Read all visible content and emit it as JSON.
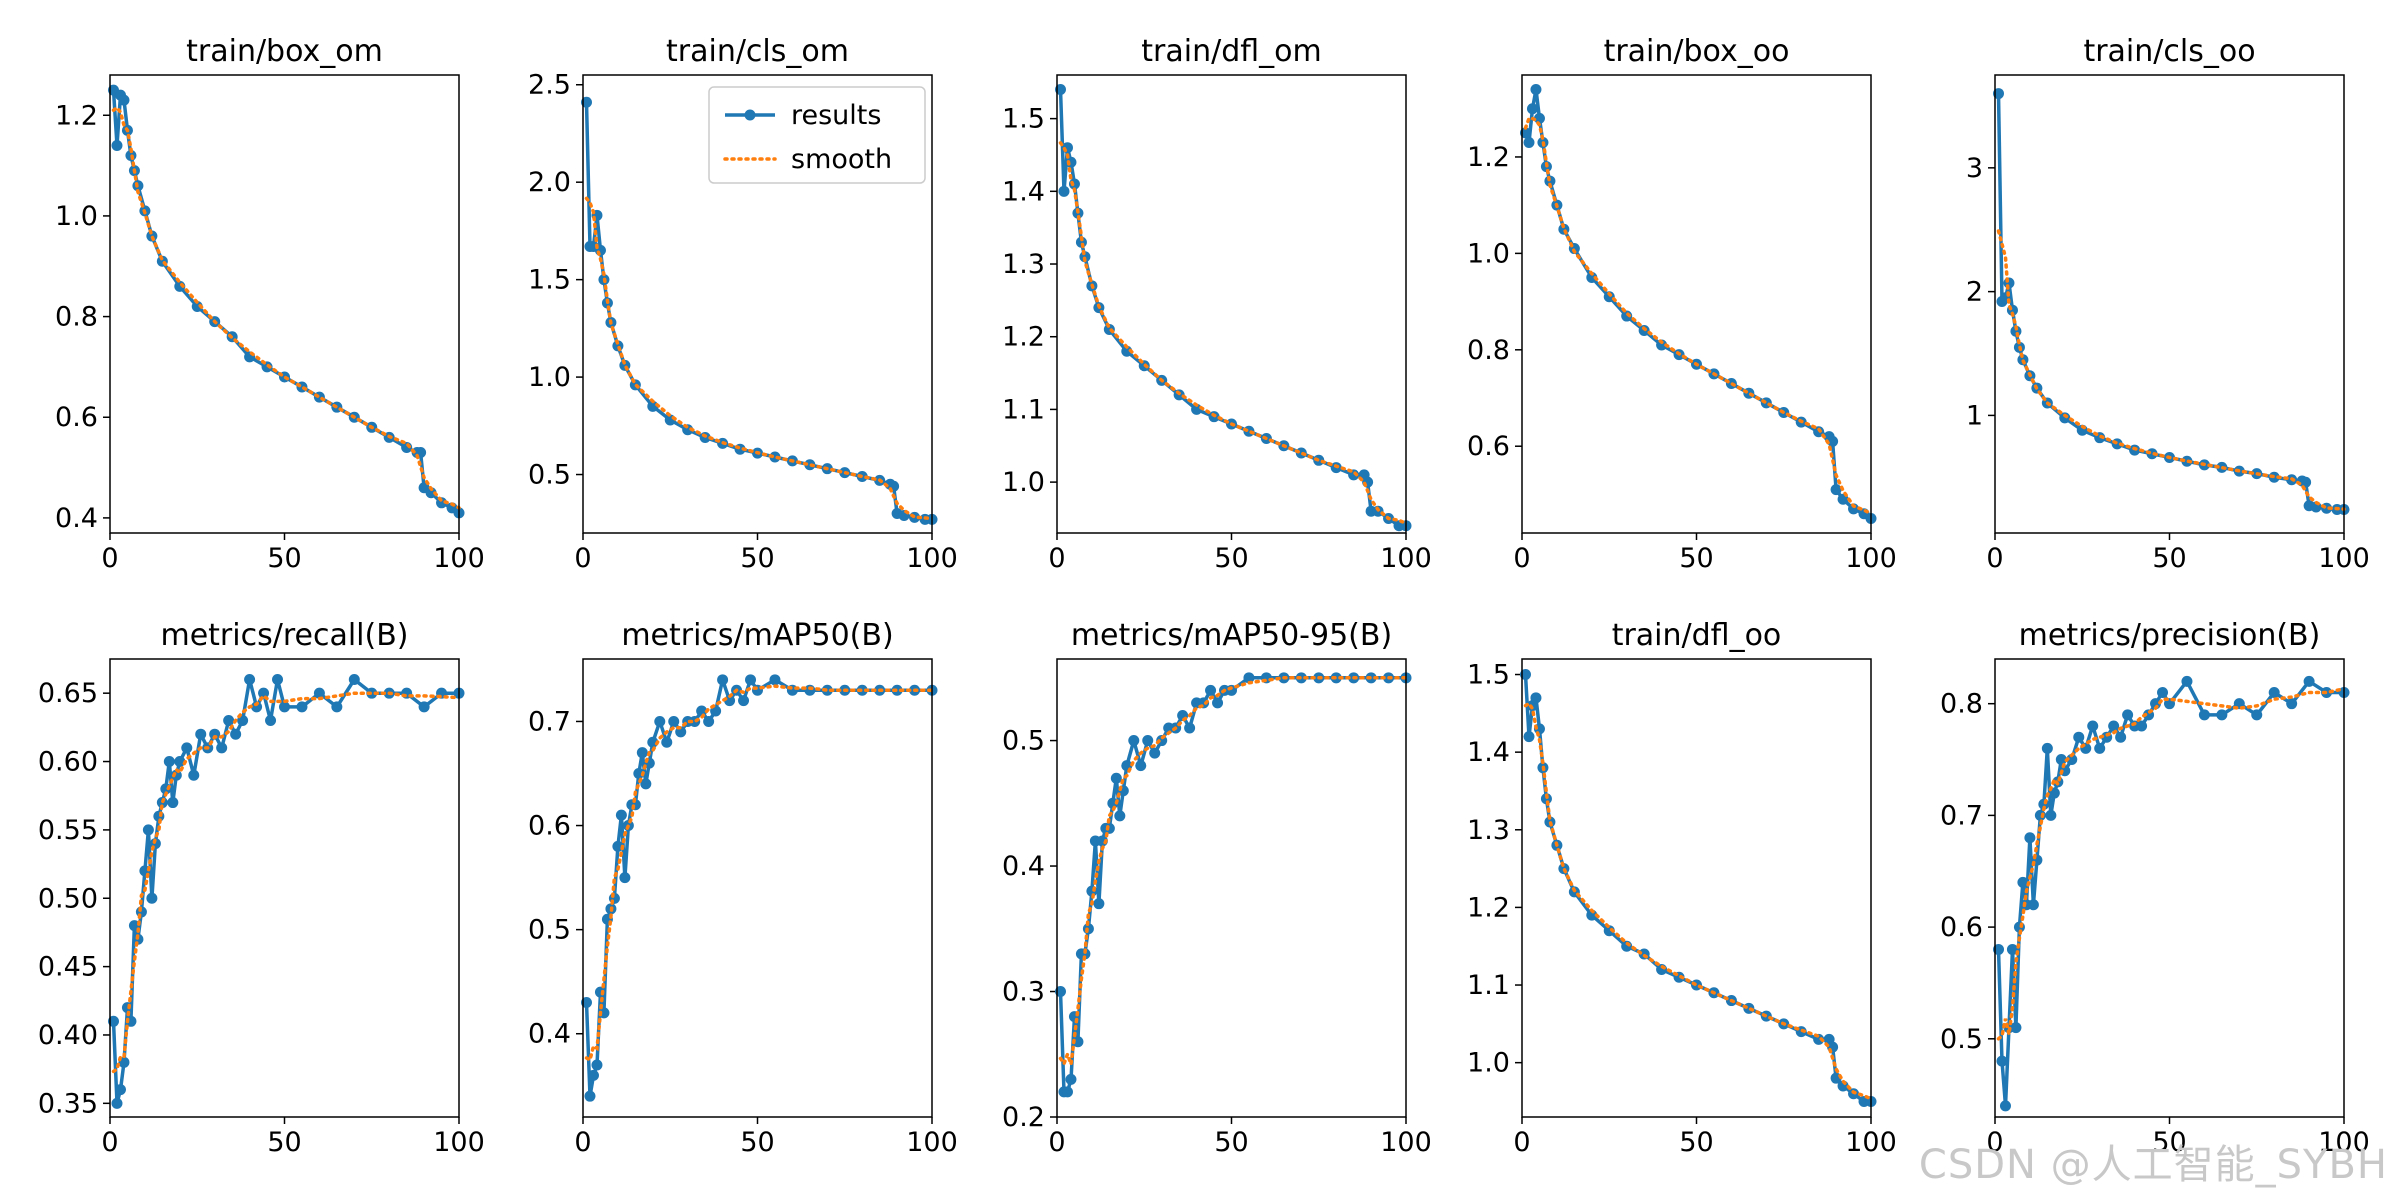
{
  "figure": {
    "watermark": "CSDN @人工智能_SYBH",
    "legend": {
      "results_label": "results",
      "smooth_label": "smooth",
      "placement": "upper-right of train/cls_om panel"
    },
    "colors": {
      "results": "#1f77b4",
      "smooth": "#ff7f0e"
    }
  },
  "chart_data": [
    {
      "type": "line",
      "title": "train/box_om",
      "xlim": [
        0,
        100
      ],
      "ylim": [
        0.37,
        1.28
      ],
      "xticks": [
        0,
        50,
        100
      ],
      "yticks": [
        0.4,
        0.6,
        0.8,
        1.0,
        1.2
      ],
      "ytick_labels": [
        "0.4",
        "0.6",
        "0.8",
        "1.0",
        "1.2"
      ],
      "series": [
        {
          "name": "results",
          "x": [
            1,
            2,
            3,
            4,
            5,
            6,
            7,
            8,
            10,
            12,
            15,
            20,
            25,
            30,
            35,
            40,
            45,
            50,
            55,
            60,
            65,
            70,
            75,
            80,
            85,
            88,
            89,
            90,
            92,
            95,
            98,
            100
          ],
          "y": [
            1.25,
            1.14,
            1.24,
            1.23,
            1.17,
            1.12,
            1.09,
            1.06,
            1.01,
            0.96,
            0.91,
            0.86,
            0.82,
            0.79,
            0.76,
            0.72,
            0.7,
            0.68,
            0.66,
            0.64,
            0.62,
            0.6,
            0.58,
            0.56,
            0.54,
            0.53,
            0.53,
            0.46,
            0.45,
            0.43,
            0.42,
            0.41
          ]
        }
      ]
    },
    {
      "type": "line",
      "title": "train/cls_om",
      "xlim": [
        0,
        100
      ],
      "ylim": [
        0.2,
        2.55
      ],
      "xticks": [
        0,
        50,
        100
      ],
      "yticks": [
        0.5,
        1.0,
        1.5,
        2.0,
        2.5
      ],
      "ytick_labels": [
        "0.5",
        "1.0",
        "1.5",
        "2.0",
        "2.5"
      ],
      "series": [
        {
          "name": "results",
          "x": [
            1,
            2,
            3,
            4,
            5,
            6,
            7,
            8,
            10,
            12,
            15,
            20,
            25,
            30,
            35,
            40,
            45,
            50,
            55,
            60,
            65,
            70,
            75,
            80,
            85,
            88,
            89,
            90,
            92,
            95,
            98,
            100
          ],
          "y": [
            2.41,
            1.67,
            1.67,
            1.83,
            1.65,
            1.5,
            1.38,
            1.28,
            1.16,
            1.06,
            0.96,
            0.85,
            0.78,
            0.73,
            0.69,
            0.66,
            0.63,
            0.61,
            0.59,
            0.57,
            0.55,
            0.53,
            0.51,
            0.49,
            0.47,
            0.45,
            0.44,
            0.3,
            0.29,
            0.28,
            0.27,
            0.27
          ]
        }
      ]
    },
    {
      "type": "line",
      "title": "train/dfl_om",
      "xlim": [
        0,
        100
      ],
      "ylim": [
        0.93,
        1.56
      ],
      "xticks": [
        0,
        50,
        100
      ],
      "yticks": [
        1.0,
        1.1,
        1.2,
        1.3,
        1.4,
        1.5
      ],
      "ytick_labels": [
        "1.0",
        "1.1",
        "1.2",
        "1.3",
        "1.4",
        "1.5"
      ],
      "series": [
        {
          "name": "results",
          "x": [
            1,
            2,
            3,
            4,
            5,
            6,
            7,
            8,
            10,
            12,
            15,
            20,
            25,
            30,
            35,
            40,
            45,
            50,
            55,
            60,
            65,
            70,
            75,
            80,
            85,
            88,
            89,
            90,
            92,
            95,
            98,
            100
          ],
          "y": [
            1.54,
            1.4,
            1.46,
            1.44,
            1.41,
            1.37,
            1.33,
            1.31,
            1.27,
            1.24,
            1.21,
            1.18,
            1.16,
            1.14,
            1.12,
            1.1,
            1.09,
            1.08,
            1.07,
            1.06,
            1.05,
            1.04,
            1.03,
            1.02,
            1.01,
            1.01,
            1.0,
            0.96,
            0.96,
            0.95,
            0.94,
            0.94
          ]
        }
      ]
    },
    {
      "type": "line",
      "title": "train/box_oo",
      "xlim": [
        0,
        100
      ],
      "ylim": [
        0.42,
        1.37
      ],
      "xticks": [
        0,
        50,
        100
      ],
      "yticks": [
        0.6,
        0.8,
        1.0,
        1.2
      ],
      "ytick_labels": [
        "0.6",
        "0.8",
        "1.0",
        "1.2"
      ],
      "series": [
        {
          "name": "results",
          "x": [
            1,
            2,
            3,
            4,
            5,
            6,
            7,
            8,
            10,
            12,
            15,
            20,
            25,
            30,
            35,
            40,
            45,
            50,
            55,
            60,
            65,
            70,
            75,
            80,
            85,
            88,
            89,
            90,
            92,
            95,
            98,
            100
          ],
          "y": [
            1.25,
            1.23,
            1.3,
            1.34,
            1.28,
            1.23,
            1.18,
            1.15,
            1.1,
            1.05,
            1.01,
            0.95,
            0.91,
            0.87,
            0.84,
            0.81,
            0.79,
            0.77,
            0.75,
            0.73,
            0.71,
            0.69,
            0.67,
            0.65,
            0.63,
            0.62,
            0.61,
            0.51,
            0.49,
            0.47,
            0.46,
            0.45
          ]
        }
      ]
    },
    {
      "type": "line",
      "title": "train/cls_oo",
      "xlim": [
        0,
        100
      ],
      "ylim": [
        0.05,
        3.75
      ],
      "xticks": [
        0,
        50,
        100
      ],
      "yticks": [
        1,
        2,
        3
      ],
      "ytick_labels": [
        "1",
        "2",
        "3"
      ],
      "series": [
        {
          "name": "results",
          "x": [
            1,
            2,
            3,
            4,
            5,
            6,
            7,
            8,
            10,
            12,
            15,
            20,
            25,
            30,
            35,
            40,
            45,
            50,
            55,
            60,
            65,
            70,
            75,
            80,
            85,
            88,
            89,
            90,
            92,
            95,
            98,
            100
          ],
          "y": [
            3.6,
            1.92,
            1.95,
            2.07,
            1.85,
            1.68,
            1.55,
            1.45,
            1.32,
            1.22,
            1.1,
            0.98,
            0.88,
            0.82,
            0.77,
            0.72,
            0.69,
            0.66,
            0.63,
            0.6,
            0.58,
            0.55,
            0.53,
            0.5,
            0.48,
            0.47,
            0.46,
            0.27,
            0.26,
            0.25,
            0.24,
            0.24
          ]
        }
      ]
    },
    {
      "type": "line",
      "title": "metrics/recall(B)",
      "xlim": [
        0,
        100
      ],
      "ylim": [
        0.34,
        0.675
      ],
      "xticks": [
        0,
        50,
        100
      ],
      "yticks": [
        0.35,
        0.4,
        0.45,
        0.5,
        0.55,
        0.6,
        0.65
      ],
      "ytick_labels": [
        "0.35",
        "0.40",
        "0.45",
        "0.50",
        "0.55",
        "0.60",
        "0.65"
      ],
      "series": [
        {
          "name": "results",
          "x": [
            1,
            2,
            3,
            4,
            5,
            6,
            7,
            8,
            9,
            10,
            11,
            12,
            13,
            14,
            15,
            16,
            17,
            18,
            19,
            20,
            22,
            24,
            26,
            28,
            30,
            32,
            34,
            36,
            38,
            40,
            42,
            44,
            46,
            48,
            50,
            55,
            60,
            65,
            70,
            75,
            80,
            85,
            90,
            95,
            100
          ],
          "y": [
            0.41,
            0.35,
            0.36,
            0.38,
            0.42,
            0.41,
            0.48,
            0.47,
            0.49,
            0.52,
            0.55,
            0.5,
            0.54,
            0.56,
            0.57,
            0.58,
            0.6,
            0.57,
            0.59,
            0.6,
            0.61,
            0.59,
            0.62,
            0.61,
            0.62,
            0.61,
            0.63,
            0.62,
            0.63,
            0.66,
            0.64,
            0.65,
            0.63,
            0.66,
            0.64,
            0.64,
            0.65,
            0.64,
            0.66,
            0.65,
            0.65,
            0.65,
            0.64,
            0.65,
            0.65
          ]
        }
      ]
    },
    {
      "type": "line",
      "title": "metrics/mAP50(B)",
      "xlim": [
        0,
        100
      ],
      "ylim": [
        0.32,
        0.76
      ],
      "xticks": [
        0,
        50,
        100
      ],
      "yticks": [
        0.4,
        0.5,
        0.6,
        0.7
      ],
      "ytick_labels": [
        "0.4",
        "0.5",
        "0.6",
        "0.7"
      ],
      "series": [
        {
          "name": "results",
          "x": [
            1,
            2,
            3,
            4,
            5,
            6,
            7,
            8,
            9,
            10,
            11,
            12,
            13,
            14,
            15,
            16,
            17,
            18,
            19,
            20,
            22,
            24,
            26,
            28,
            30,
            32,
            34,
            36,
            38,
            40,
            42,
            44,
            46,
            48,
            50,
            55,
            60,
            65,
            70,
            75,
            80,
            85,
            90,
            95,
            100
          ],
          "y": [
            0.43,
            0.34,
            0.36,
            0.37,
            0.44,
            0.42,
            0.51,
            0.52,
            0.53,
            0.58,
            0.61,
            0.55,
            0.6,
            0.62,
            0.62,
            0.65,
            0.67,
            0.64,
            0.66,
            0.68,
            0.7,
            0.68,
            0.7,
            0.69,
            0.7,
            0.7,
            0.71,
            0.7,
            0.71,
            0.74,
            0.72,
            0.73,
            0.72,
            0.74,
            0.73,
            0.74,
            0.73,
            0.73,
            0.73,
            0.73,
            0.73,
            0.73,
            0.73,
            0.73,
            0.73
          ]
        }
      ]
    },
    {
      "type": "line",
      "title": "metrics/mAP50-95(B)",
      "xlim": [
        0,
        100
      ],
      "ylim": [
        0.2,
        0.565
      ],
      "xticks": [
        0,
        50,
        100
      ],
      "yticks": [
        0.2,
        0.3,
        0.4,
        0.5
      ],
      "ytick_labels": [
        "0.2",
        "0.3",
        "0.4",
        "0.5"
      ],
      "series": [
        {
          "name": "results",
          "x": [
            1,
            2,
            3,
            4,
            5,
            6,
            7,
            8,
            9,
            10,
            11,
            12,
            13,
            14,
            15,
            16,
            17,
            18,
            19,
            20,
            22,
            24,
            26,
            28,
            30,
            32,
            34,
            36,
            38,
            40,
            42,
            44,
            46,
            48,
            50,
            55,
            60,
            65,
            70,
            75,
            80,
            85,
            90,
            95,
            100
          ],
          "y": [
            0.3,
            0.22,
            0.22,
            0.23,
            0.28,
            0.26,
            0.33,
            0.33,
            0.35,
            0.38,
            0.42,
            0.37,
            0.42,
            0.43,
            0.43,
            0.45,
            0.47,
            0.44,
            0.46,
            0.48,
            0.5,
            0.48,
            0.5,
            0.49,
            0.5,
            0.51,
            0.51,
            0.52,
            0.51,
            0.53,
            0.53,
            0.54,
            0.53,
            0.54,
            0.54,
            0.55,
            0.55,
            0.55,
            0.55,
            0.55,
            0.55,
            0.55,
            0.55,
            0.55,
            0.55
          ]
        }
      ]
    },
    {
      "type": "line",
      "title": "train/dfl_oo",
      "xlim": [
        0,
        100
      ],
      "ylim": [
        0.93,
        1.52
      ],
      "xticks": [
        0,
        50,
        100
      ],
      "yticks": [
        1.0,
        1.1,
        1.2,
        1.3,
        1.4,
        1.5
      ],
      "ytick_labels": [
        "1.0",
        "1.1",
        "1.2",
        "1.3",
        "1.4",
        "1.5"
      ],
      "series": [
        {
          "name": "results",
          "x": [
            1,
            2,
            3,
            4,
            5,
            6,
            7,
            8,
            10,
            12,
            15,
            20,
            25,
            30,
            35,
            40,
            45,
            50,
            55,
            60,
            65,
            70,
            75,
            80,
            85,
            88,
            89,
            90,
            92,
            95,
            98,
            100
          ],
          "y": [
            1.5,
            1.42,
            1.46,
            1.47,
            1.43,
            1.38,
            1.34,
            1.31,
            1.28,
            1.25,
            1.22,
            1.19,
            1.17,
            1.15,
            1.14,
            1.12,
            1.11,
            1.1,
            1.09,
            1.08,
            1.07,
            1.06,
            1.05,
            1.04,
            1.03,
            1.03,
            1.02,
            0.98,
            0.97,
            0.96,
            0.95,
            0.95
          ]
        }
      ]
    },
    {
      "type": "line",
      "title": "metrics/precision(B)",
      "xlim": [
        0,
        100
      ],
      "ylim": [
        0.43,
        0.84
      ],
      "xticks": [
        0,
        50,
        100
      ],
      "yticks": [
        0.5,
        0.6,
        0.7,
        0.8
      ],
      "ytick_labels": [
        "0.5",
        "0.6",
        "0.7",
        "0.8"
      ],
      "series": [
        {
          "name": "results",
          "x": [
            1,
            2,
            3,
            4,
            5,
            6,
            7,
            8,
            9,
            10,
            11,
            12,
            13,
            14,
            15,
            16,
            17,
            18,
            19,
            20,
            22,
            24,
            26,
            28,
            30,
            32,
            34,
            36,
            38,
            40,
            42,
            44,
            46,
            48,
            50,
            55,
            60,
            65,
            70,
            75,
            80,
            85,
            90,
            95,
            100
          ],
          "y": [
            0.58,
            0.48,
            0.44,
            0.51,
            0.58,
            0.51,
            0.6,
            0.64,
            0.62,
            0.68,
            0.62,
            0.66,
            0.7,
            0.71,
            0.76,
            0.7,
            0.72,
            0.73,
            0.75,
            0.74,
            0.75,
            0.77,
            0.76,
            0.78,
            0.76,
            0.77,
            0.78,
            0.77,
            0.79,
            0.78,
            0.78,
            0.79,
            0.8,
            0.81,
            0.8,
            0.82,
            0.79,
            0.79,
            0.8,
            0.79,
            0.81,
            0.8,
            0.82,
            0.81,
            0.81
          ]
        }
      ]
    }
  ]
}
